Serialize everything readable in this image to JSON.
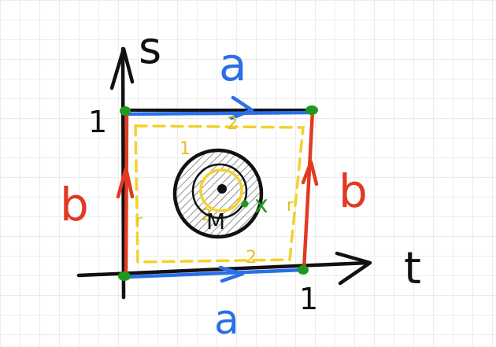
{
  "axes": {
    "x_label": "t",
    "y_label": "s",
    "x_tick": "1",
    "y_tick": "1"
  },
  "edges": {
    "top_label": "a",
    "bottom_label": "a",
    "left_label": "b",
    "right_label": "b"
  },
  "inner_path": {
    "labels": [
      "1",
      "2",
      "r",
      "r",
      "2",
      "2"
    ]
  },
  "disk": {
    "label": "M",
    "point_label": "x"
  },
  "colors": {
    "axis": "#111111",
    "a_edge": "#2a6fe8",
    "b_edge": "#e23a22",
    "vertex": "#1e9a1e",
    "inner_path": "#f2d22e"
  }
}
